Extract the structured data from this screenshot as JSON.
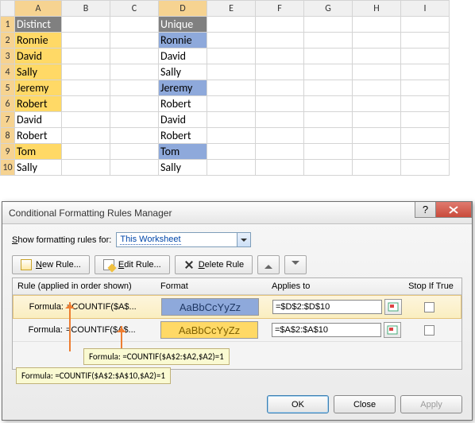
{
  "columns": [
    "A",
    "B",
    "C",
    "D",
    "E",
    "F",
    "G",
    "H",
    "I"
  ],
  "rows": [
    {
      "n": 1,
      "A": {
        "t": "Distinct",
        "cls": "hdr"
      },
      "D": {
        "t": "Unique",
        "cls": "hdr"
      }
    },
    {
      "n": 2,
      "A": {
        "t": "Ronnie",
        "cls": "ylw"
      },
      "D": {
        "t": "Ronnie",
        "cls": "blu"
      }
    },
    {
      "n": 3,
      "A": {
        "t": "David",
        "cls": "ylw"
      },
      "D": {
        "t": "David"
      }
    },
    {
      "n": 4,
      "A": {
        "t": "Sally",
        "cls": "ylw"
      },
      "D": {
        "t": "Sally"
      }
    },
    {
      "n": 5,
      "A": {
        "t": "Jeremy",
        "cls": "ylw"
      },
      "D": {
        "t": "Jeremy",
        "cls": "blu"
      }
    },
    {
      "n": 6,
      "A": {
        "t": "Robert",
        "cls": "ylw"
      },
      "D": {
        "t": "Robert"
      }
    },
    {
      "n": 7,
      "A": {
        "t": "David"
      },
      "D": {
        "t": "David"
      }
    },
    {
      "n": 8,
      "A": {
        "t": "Robert"
      },
      "D": {
        "t": "Robert"
      }
    },
    {
      "n": 9,
      "A": {
        "t": "Tom",
        "cls": "ylw"
      },
      "D": {
        "t": "Tom",
        "cls": "blu"
      }
    },
    {
      "n": 10,
      "A": {
        "t": "Sally"
      },
      "D": {
        "t": "Sally"
      }
    }
  ],
  "dialog": {
    "title": "Conditional Formatting Rules Manager",
    "show_label_pre": "S",
    "show_label_post": "how formatting rules for:",
    "show_value": "This Worksheet",
    "btn_new": "New Rule...",
    "btn_edit": "Edit Rule...",
    "btn_delete": "Delete Rule",
    "hdr_rule": "Rule (applied in order shown)",
    "hdr_format": "Format",
    "hdr_applies": "Applies to",
    "hdr_stop": "Stop If True",
    "rules": [
      {
        "label": "Formula:",
        "formula": "=COUNTIF($A$...",
        "preview": "AaBbCcYyZz",
        "preview_cls": "b",
        "applies": "=$D$2:$D$10",
        "selected": true
      },
      {
        "label": "Formula:",
        "formula": "=COUNTIF($A$...",
        "preview": "AaBbCcYyZz",
        "preview_cls": "y",
        "applies": "=$A$2:$A$10",
        "selected": false
      }
    ],
    "ok": "OK",
    "close": "Close",
    "apply": "Apply"
  },
  "callouts": {
    "c1": "Formula: =COUNTIF($A$2:$A2,$A2)=1",
    "c2": "Formula: =COUNTIF($A$2:$A$10,$A2)=1"
  },
  "colors": {
    "yellow": "#ffd966",
    "blue": "#8ea9db",
    "gray": "#808080",
    "arrow": "#ed7d31"
  }
}
